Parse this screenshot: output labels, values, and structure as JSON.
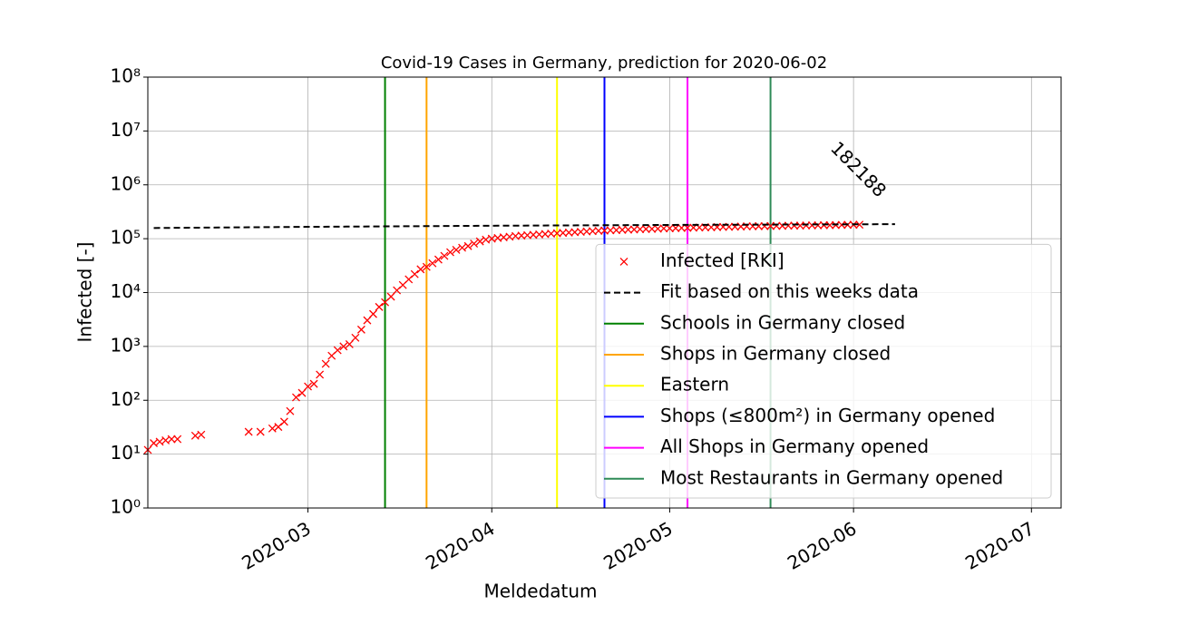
{
  "chart_data": {
    "type": "line",
    "title": "Covid-19 Cases in Germany, prediction for 2020-06-02",
    "x_label": "Meldedatum",
    "y_label": "Infected [-]",
    "log_scale_y": true,
    "grid": true,
    "legend": "lower right",
    "xlim": [
      "2020-02-03",
      "2020-07-06"
    ],
    "xticks": [
      {
        "value": "2020-03-01",
        "label": "2020-03"
      },
      {
        "value": "2020-04-01",
        "label": "2020-04"
      },
      {
        "value": "2020-05-01",
        "label": "2020-05"
      },
      {
        "value": "2020-06-01",
        "label": "2020-06"
      },
      {
        "value": "2020-07-01",
        "label": "2020-07"
      }
    ],
    "ylim": [
      1,
      100000000
    ],
    "yticks": [
      {
        "value": 1,
        "label": "10⁰"
      },
      {
        "value": 10,
        "label": "10¹"
      },
      {
        "value": 100,
        "label": "10²"
      },
      {
        "value": 1000,
        "label": "10³"
      },
      {
        "value": 10000,
        "label": "10⁴"
      },
      {
        "value": 100000,
        "label": "10⁵"
      },
      {
        "value": 1000000,
        "label": "10⁶"
      },
      {
        "value": 10000000,
        "label": "10⁷"
      },
      {
        "value": 100000000,
        "label": "10⁸"
      }
    ],
    "series": [
      {
        "name": "Infected [RKI]",
        "color": "#ff0000",
        "marker": "x",
        "x": [
          "2020-02-03",
          "2020-02-04",
          "2020-02-05",
          "2020-02-06",
          "2020-02-07",
          "2020-02-08",
          "2020-02-11",
          "2020-02-12",
          "2020-02-20",
          "2020-02-22",
          "2020-02-24",
          "2020-02-25",
          "2020-02-26",
          "2020-02-27",
          "2020-02-28",
          "2020-02-29",
          "2020-03-01",
          "2020-03-02",
          "2020-03-03",
          "2020-03-04",
          "2020-03-05",
          "2020-03-06",
          "2020-03-07",
          "2020-03-08",
          "2020-03-09",
          "2020-03-10",
          "2020-03-11",
          "2020-03-12",
          "2020-03-13",
          "2020-03-14",
          "2020-03-15",
          "2020-03-16",
          "2020-03-17",
          "2020-03-18",
          "2020-03-19",
          "2020-03-20",
          "2020-03-21",
          "2020-03-22",
          "2020-03-23",
          "2020-03-24",
          "2020-03-25",
          "2020-03-26",
          "2020-03-27",
          "2020-03-28",
          "2020-03-29",
          "2020-03-30",
          "2020-03-31",
          "2020-04-01",
          "2020-04-02",
          "2020-04-03",
          "2020-04-04",
          "2020-04-05",
          "2020-04-06",
          "2020-04-07",
          "2020-04-08",
          "2020-04-09",
          "2020-04-10",
          "2020-04-11",
          "2020-04-12",
          "2020-04-13",
          "2020-04-14",
          "2020-04-15",
          "2020-04-16",
          "2020-04-17",
          "2020-04-18",
          "2020-04-19",
          "2020-04-20",
          "2020-04-21",
          "2020-04-22",
          "2020-04-23",
          "2020-04-24",
          "2020-04-25",
          "2020-04-26",
          "2020-04-27",
          "2020-04-28",
          "2020-04-29",
          "2020-04-30",
          "2020-05-01",
          "2020-05-02",
          "2020-05-03",
          "2020-05-04",
          "2020-05-05",
          "2020-05-06",
          "2020-05-07",
          "2020-05-08",
          "2020-05-09",
          "2020-05-10",
          "2020-05-11",
          "2020-05-12",
          "2020-05-13",
          "2020-05-14",
          "2020-05-15",
          "2020-05-16",
          "2020-05-17",
          "2020-05-18",
          "2020-05-19",
          "2020-05-20",
          "2020-05-21",
          "2020-05-22",
          "2020-05-23",
          "2020-05-24",
          "2020-05-25",
          "2020-05-26",
          "2020-05-27",
          "2020-05-28",
          "2020-05-29",
          "2020-05-30",
          "2020-05-31",
          "2020-06-01",
          "2020-06-02"
        ],
        "values": [
          12,
          16,
          17,
          18,
          19,
          19,
          22,
          23,
          26,
          26,
          30,
          32,
          40,
          63,
          113,
          137,
          180,
          202,
          300,
          475,
          670,
          850,
          1000,
          1100,
          1450,
          2050,
          3050,
          4000,
          5400,
          6600,
          8400,
          11000,
          13800,
          17600,
          22000,
          27000,
          30000,
          35000,
          41000,
          48000,
          56000,
          62000,
          68000,
          73000,
          81000,
          89000,
          96000,
          100000,
          103000,
          106000,
          109000,
          112000,
          114000,
          116000,
          118000,
          120000,
          122000,
          124000,
          126000,
          128000,
          130000,
          132000,
          134000,
          136000,
          138000,
          140000,
          141000,
          143000,
          144000,
          146000,
          147000,
          148000,
          150000,
          151000,
          152000,
          153000,
          155000,
          156000,
          157000,
          158000,
          159000,
          160000,
          161000,
          162000,
          163000,
          164000,
          165000,
          166000,
          167000,
          168000,
          169000,
          170000,
          170500,
          171000,
          172000,
          172500,
          173000,
          174000,
          174500,
          175000,
          176000,
          176500,
          177000,
          178000,
          178500,
          179000,
          180000,
          180500,
          181500,
          182188
        ]
      },
      {
        "name": "Fit based on this weeks data",
        "color": "#000000",
        "dashed": true,
        "x": [
          "2020-02-04",
          "2020-03-01",
          "2020-04-01",
          "2020-05-01",
          "2020-06-08"
        ],
        "values": [
          158000,
          166000,
          174000,
          180000,
          186000
        ]
      }
    ],
    "events": [
      {
        "name": "Schools in Germany closed",
        "x": "2020-03-14",
        "color": "#008000"
      },
      {
        "name": "Shops in Germany closed",
        "x": "2020-03-21",
        "color": "#ffa500"
      },
      {
        "name": "Eastern",
        "x": "2020-04-12",
        "color": "#ffff00"
      },
      {
        "name": "Shops (≤800m²) in Germany opened",
        "x": "2020-04-20",
        "color": "#0000ff"
      },
      {
        "name": "All Shops in Germany opened",
        "x": "2020-05-04",
        "color": "#ff00ff"
      },
      {
        "name": "Most Restaurants in Germany opened",
        "x": "2020-05-18",
        "color": "#2e8b57"
      }
    ],
    "annotation": "182188"
  }
}
